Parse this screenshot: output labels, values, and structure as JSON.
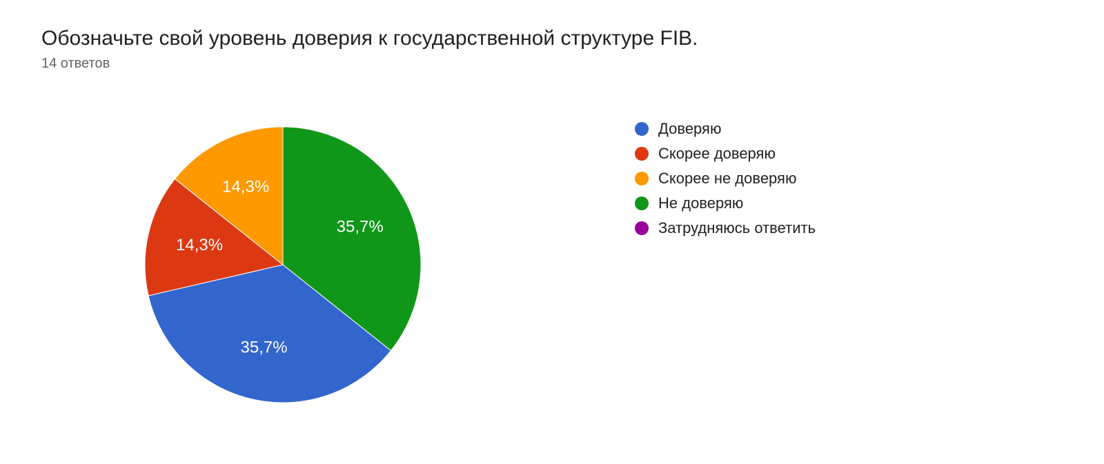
{
  "title": "Обозначьте свой уровень доверия к государственной структуре FIB.",
  "subtitle": "14 ответов",
  "chart": {
    "type": "pie",
    "background_color": "#ffffff",
    "title_fontsize": 30,
    "subtitle_fontsize": 20,
    "subtitle_color": "#5f6368",
    "radius": 200,
    "label_fontsize": 24,
    "label_color": "#ffffff",
    "legend_fontsize": 22,
    "legend_swatch_size": 20,
    "start_angle_deg": -90,
    "slices": [
      {
        "key": "ne_doveryayu",
        "label": "Не доверяю",
        "percent": 35.7,
        "display": "35,7%",
        "color": "#109618",
        "legend_order": 3
      },
      {
        "key": "doveryayu",
        "label": "Доверяю",
        "percent": 35.7,
        "display": "35,7%",
        "color": "#3366cc",
        "legend_order": 0
      },
      {
        "key": "skoree_doveryayu",
        "label": "Скорее доверяю",
        "percent": 14.3,
        "display": "14,3%",
        "color": "#dc3912",
        "legend_order": 1
      },
      {
        "key": "skoree_ne_doveryayu",
        "label": "Скорее не доверяю",
        "percent": 14.3,
        "display": "14,3%",
        "color": "#ff9900",
        "legend_order": 2
      }
    ],
    "legend": [
      {
        "label": "Доверяю",
        "color": "#3366cc"
      },
      {
        "label": "Скорее доверяю",
        "color": "#dc3912"
      },
      {
        "label": "Скорее не доверяю",
        "color": "#ff9900"
      },
      {
        "label": "Не доверяю",
        "color": "#109618"
      },
      {
        "label": "Затрудняюсь ответить",
        "color": "#990099"
      }
    ]
  }
}
